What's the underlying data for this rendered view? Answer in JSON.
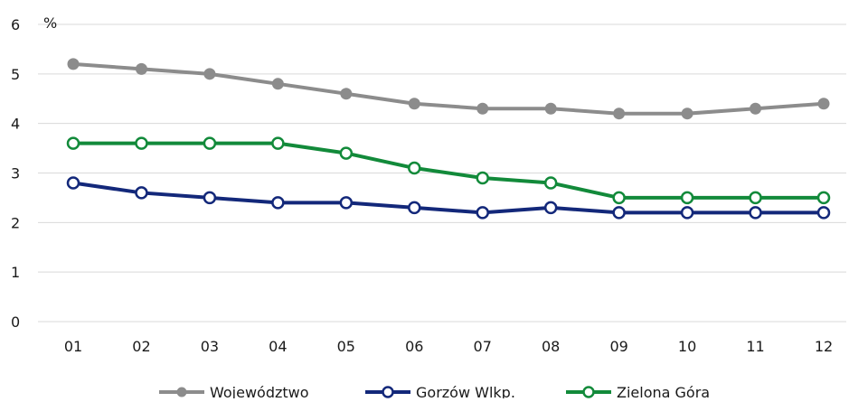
{
  "chart_data": {
    "type": "line",
    "unit_label": "%",
    "categories": [
      "01",
      "02",
      "03",
      "04",
      "05",
      "06",
      "07",
      "08",
      "09",
      "10",
      "11",
      "12"
    ],
    "ylim": [
      0,
      6
    ],
    "yticks": [
      0,
      1,
      2,
      3,
      4,
      5,
      6
    ],
    "grid": true,
    "legend_position": "bottom",
    "series": [
      {
        "name": "Województwo",
        "color": "#8c8c8c",
        "marker": "filled",
        "values": [
          5.2,
          5.1,
          5.0,
          4.8,
          4.6,
          4.4,
          4.3,
          4.3,
          4.2,
          4.2,
          4.3,
          4.4
        ]
      },
      {
        "name": "Gorzów Wlkp.",
        "color": "#13287a",
        "marker": "hollow",
        "values": [
          2.8,
          2.6,
          2.5,
          2.4,
          2.4,
          2.3,
          2.2,
          2.3,
          2.2,
          2.2,
          2.2,
          2.2
        ]
      },
      {
        "name": "Zielona Góra",
        "color": "#128a3a",
        "marker": "hollow",
        "values": [
          3.6,
          3.6,
          3.6,
          3.6,
          3.4,
          3.1,
          2.9,
          2.8,
          2.5,
          2.5,
          2.5,
          2.5
        ]
      }
    ]
  }
}
